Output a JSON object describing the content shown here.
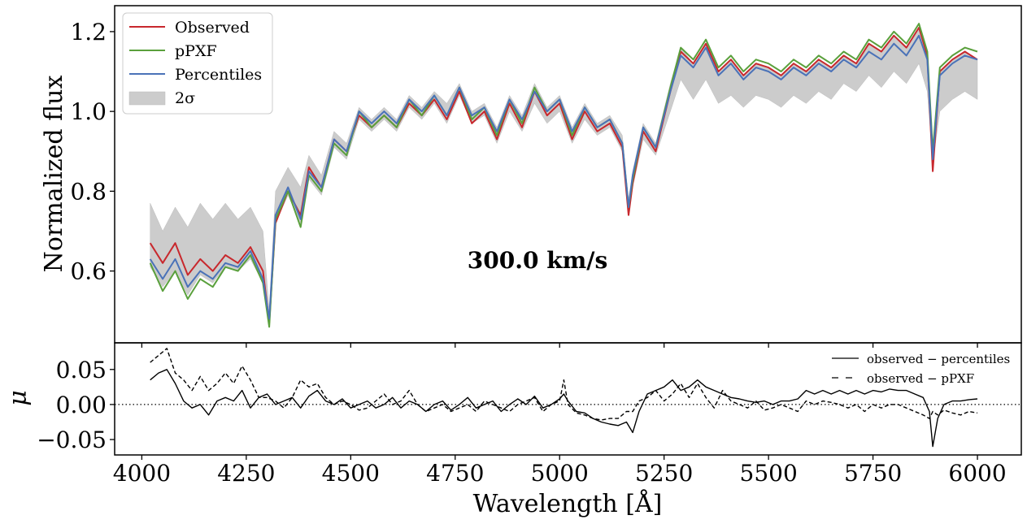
{
  "chart_data": [
    {
      "type": "line",
      "panel": "top",
      "ylabel": "Normalized flux",
      "annotation": "300.0 km/s",
      "xlim": [
        3935,
        6105
      ],
      "ylim": [
        0.42,
        1.265
      ],
      "x_ticks": [
        4000,
        4250,
        4500,
        4750,
        5000,
        5250,
        5500,
        5750,
        6000
      ],
      "y_ticks": [
        0.6,
        0.8,
        1.0,
        1.2
      ],
      "y_tick_labels": [
        "0.6",
        "0.8",
        "1.0",
        "1.2"
      ],
      "legend": {
        "position": "upper-left",
        "entries": [
          "Observed",
          "pPXF",
          "Percentiles",
          "2σ"
        ]
      },
      "x": [
        4020,
        4050,
        4080,
        4110,
        4140,
        4170,
        4200,
        4230,
        4260,
        4290,
        4305,
        4320,
        4350,
        4380,
        4400,
        4430,
        4460,
        4490,
        4520,
        4550,
        4580,
        4610,
        4640,
        4670,
        4700,
        4730,
        4760,
        4790,
        4820,
        4850,
        4880,
        4910,
        4940,
        4970,
        5000,
        5030,
        5060,
        5090,
        5120,
        5150,
        5165,
        5175,
        5200,
        5230,
        5265,
        5290,
        5320,
        5350,
        5380,
        5410,
        5440,
        5470,
        5500,
        5530,
        5560,
        5590,
        5620,
        5650,
        5680,
        5710,
        5740,
        5770,
        5800,
        5830,
        5860,
        5880,
        5893,
        5910,
        5940,
        5970,
        6000
      ],
      "series": [
        {
          "name": "Observed",
          "color": "#c8282d",
          "values": [
            0.67,
            0.62,
            0.67,
            0.59,
            0.63,
            0.6,
            0.64,
            0.62,
            0.66,
            0.6,
            0.47,
            0.72,
            0.8,
            0.74,
            0.86,
            0.81,
            0.93,
            0.9,
            0.99,
            0.96,
            0.99,
            0.96,
            1.02,
            0.99,
            1.03,
            0.98,
            1.05,
            0.97,
            1.0,
            0.93,
            1.02,
            0.96,
            1.05,
            0.99,
            1.02,
            0.93,
            1.0,
            0.95,
            0.97,
            0.91,
            0.74,
            0.82,
            0.95,
            0.9,
            1.05,
            1.15,
            1.12,
            1.17,
            1.1,
            1.13,
            1.09,
            1.12,
            1.11,
            1.09,
            1.12,
            1.1,
            1.13,
            1.11,
            1.14,
            1.12,
            1.17,
            1.15,
            1.19,
            1.16,
            1.21,
            1.14,
            0.85,
            1.1,
            1.13,
            1.15,
            1.13
          ]
        },
        {
          "name": "pPXF",
          "color": "#5aa03c",
          "values": [
            0.62,
            0.55,
            0.6,
            0.53,
            0.58,
            0.56,
            0.61,
            0.6,
            0.64,
            0.57,
            0.46,
            0.73,
            0.8,
            0.71,
            0.84,
            0.8,
            0.92,
            0.89,
            1.0,
            0.96,
            0.99,
            0.96,
            1.03,
            0.99,
            1.04,
            0.99,
            1.06,
            0.98,
            1.01,
            0.94,
            1.03,
            0.97,
            1.06,
            1.0,
            1.03,
            0.94,
            1.01,
            0.96,
            0.98,
            0.92,
            0.76,
            0.83,
            0.96,
            0.91,
            1.06,
            1.16,
            1.13,
            1.18,
            1.11,
            1.14,
            1.1,
            1.13,
            1.12,
            1.1,
            1.13,
            1.11,
            1.14,
            1.12,
            1.15,
            1.13,
            1.18,
            1.16,
            1.2,
            1.17,
            1.22,
            1.15,
            0.9,
            1.11,
            1.14,
            1.16,
            1.15
          ]
        },
        {
          "name": "Percentiles",
          "color": "#4a72b8",
          "values": [
            0.63,
            0.58,
            0.63,
            0.56,
            0.6,
            0.58,
            0.62,
            0.61,
            0.65,
            0.58,
            0.48,
            0.74,
            0.81,
            0.73,
            0.85,
            0.81,
            0.93,
            0.9,
            1.0,
            0.97,
            1.0,
            0.97,
            1.03,
            1.0,
            1.04,
            0.99,
            1.06,
            0.99,
            1.01,
            0.95,
            1.03,
            0.98,
            1.05,
            1.0,
            1.03,
            0.95,
            1.01,
            0.96,
            0.98,
            0.92,
            0.76,
            0.84,
            0.96,
            0.91,
            1.05,
            1.14,
            1.11,
            1.16,
            1.09,
            1.12,
            1.08,
            1.11,
            1.1,
            1.08,
            1.11,
            1.09,
            1.12,
            1.1,
            1.13,
            1.11,
            1.15,
            1.13,
            1.17,
            1.14,
            1.19,
            1.13,
            0.88,
            1.09,
            1.12,
            1.14,
            1.13
          ]
        }
      ],
      "band": {
        "name": "2σ",
        "color": "#cccccc",
        "lower": [
          0.61,
          0.56,
          0.6,
          0.54,
          0.59,
          0.57,
          0.61,
          0.6,
          0.63,
          0.57,
          0.47,
          0.72,
          0.79,
          0.72,
          0.83,
          0.79,
          0.91,
          0.88,
          0.98,
          0.95,
          0.98,
          0.95,
          1.01,
          0.98,
          1.02,
          0.97,
          1.04,
          0.97,
          0.99,
          0.92,
          1.0,
          0.95,
          1.02,
          0.97,
          1.0,
          0.92,
          0.98,
          0.94,
          0.96,
          0.9,
          0.74,
          0.81,
          0.93,
          0.89,
          1.0,
          1.08,
          1.03,
          1.08,
          1.02,
          1.04,
          1.01,
          1.04,
          1.03,
          1.01,
          1.04,
          1.02,
          1.05,
          1.03,
          1.07,
          1.05,
          1.09,
          1.06,
          1.1,
          1.07,
          1.12,
          1.05,
          0.87,
          1.0,
          1.03,
          1.05,
          1.03
        ],
        "upper": [
          0.77,
          0.7,
          0.76,
          0.71,
          0.77,
          0.73,
          0.77,
          0.73,
          0.76,
          0.7,
          0.5,
          0.8,
          0.86,
          0.81,
          0.89,
          0.84,
          0.95,
          0.92,
          1.01,
          0.98,
          1.01,
          0.98,
          1.04,
          1.01,
          1.05,
          1.02,
          1.07,
          1.0,
          1.02,
          0.96,
          1.04,
          0.99,
          1.07,
          1.01,
          1.04,
          0.96,
          1.02,
          0.97,
          0.99,
          0.94,
          0.78,
          0.85,
          0.97,
          0.92,
          1.07,
          1.16,
          1.12,
          1.17,
          1.1,
          1.13,
          1.09,
          1.12,
          1.11,
          1.09,
          1.12,
          1.1,
          1.13,
          1.11,
          1.14,
          1.12,
          1.17,
          1.15,
          1.19,
          1.16,
          1.21,
          1.14,
          0.89,
          1.1,
          1.13,
          1.15,
          1.13
        ]
      }
    },
    {
      "type": "line",
      "panel": "bottom",
      "ylabel": "μ",
      "xlabel": "Wavelength [Å]",
      "xlim": [
        3935,
        6105
      ],
      "ylim": [
        -0.072,
        0.088
      ],
      "x_ticks": [
        4000,
        4250,
        4500,
        4750,
        5000,
        5250,
        5500,
        5750,
        6000
      ],
      "x_tick_labels": [
        "4000",
        "4250",
        "4500",
        "4750",
        "5000",
        "5250",
        "5500",
        "5750",
        "6000"
      ],
      "y_ticks": [
        -0.05,
        0.0,
        0.05
      ],
      "y_tick_labels": [
        "−0.05",
        "0.00",
        "0.05"
      ],
      "reference_line": 0.0,
      "legend": {
        "position": "upper-right",
        "entries": [
          "observed − percentiles",
          "observed − pPXF"
        ]
      },
      "x": [
        4020,
        4040,
        4060,
        4080,
        4100,
        4120,
        4140,
        4160,
        4180,
        4200,
        4220,
        4240,
        4260,
        4280,
        4300,
        4320,
        4340,
        4360,
        4380,
        4400,
        4420,
        4440,
        4460,
        4480,
        4500,
        4520,
        4540,
        4560,
        4580,
        4600,
        4620,
        4640,
        4660,
        4680,
        4700,
        4720,
        4740,
        4760,
        4780,
        4800,
        4820,
        4840,
        4860,
        4880,
        4900,
        4920,
        4940,
        4960,
        4980,
        5000,
        5010,
        5020,
        5040,
        5060,
        5080,
        5100,
        5120,
        5140,
        5160,
        5175,
        5190,
        5210,
        5230,
        5250,
        5270,
        5290,
        5310,
        5330,
        5350,
        5370,
        5390,
        5410,
        5430,
        5450,
        5470,
        5490,
        5510,
        5530,
        5550,
        5570,
        5590,
        5610,
        5630,
        5650,
        5670,
        5690,
        5710,
        5730,
        5750,
        5770,
        5790,
        5810,
        5830,
        5850,
        5870,
        5885,
        5893,
        5905,
        5920,
        5940,
        5960,
        5980,
        6000
      ],
      "series": [
        {
          "name": "observed − percentiles",
          "style": "solid",
          "values": [
            0.035,
            0.045,
            0.05,
            0.03,
            0.005,
            -0.005,
            0.0,
            -0.015,
            0.005,
            0.01,
            0.005,
            0.02,
            -0.005,
            0.01,
            0.015,
            0.0,
            0.005,
            0.01,
            -0.005,
            0.012,
            0.02,
            0.005,
            0.0,
            0.008,
            -0.005,
            0.0,
            0.005,
            -0.005,
            0.0,
            0.01,
            -0.005,
            0.005,
            0.0,
            -0.01,
            0.0,
            0.005,
            -0.008,
            0.0,
            0.01,
            -0.005,
            0.0,
            0.005,
            -0.01,
            0.0,
            0.008,
            0.0,
            0.012,
            -0.005,
            0.0,
            0.008,
            0.015,
            0.005,
            -0.01,
            -0.012,
            -0.02,
            -0.025,
            -0.028,
            -0.03,
            -0.025,
            -0.04,
            -0.01,
            0.015,
            0.02,
            0.025,
            0.035,
            0.02,
            0.025,
            0.035,
            0.025,
            0.02,
            0.015,
            0.01,
            0.008,
            0.005,
            0.003,
            0.005,
            0.0,
            0.005,
            0.005,
            0.008,
            0.02,
            0.015,
            0.02,
            0.015,
            0.02,
            0.015,
            0.02,
            0.015,
            0.02,
            0.018,
            0.022,
            0.02,
            0.02,
            0.015,
            0.01,
            -0.01,
            -0.06,
            -0.02,
            0.0,
            0.005,
            0.005,
            0.007,
            0.008
          ]
        },
        {
          "name": "observed − pPXF",
          "style": "dashed",
          "values": [
            0.06,
            0.07,
            0.08,
            0.045,
            0.035,
            0.02,
            0.04,
            0.02,
            0.03,
            0.045,
            0.03,
            0.055,
            0.035,
            0.01,
            0.01,
            0.005,
            -0.005,
            0.01,
            0.035,
            0.025,
            0.03,
            0.01,
            0.0,
            0.005,
            0.0,
            -0.008,
            -0.005,
            0.005,
            0.015,
            0.0,
            0.005,
            0.02,
            0.0,
            -0.01,
            -0.005,
            0.0,
            -0.01,
            -0.005,
            0.0,
            -0.01,
            0.005,
            0.0,
            -0.005,
            -0.01,
            0.0,
            0.005,
            0.01,
            -0.01,
            0.0,
            0.005,
            0.035,
            0.0,
            -0.012,
            -0.015,
            -0.02,
            -0.022,
            -0.02,
            -0.02,
            -0.01,
            -0.01,
            0.005,
            0.01,
            0.02,
            0.005,
            0.015,
            0.03,
            0.01,
            0.03,
            0.01,
            -0.005,
            0.02,
            0.005,
            0.0,
            -0.005,
            0.005,
            -0.008,
            -0.005,
            0.0,
            -0.005,
            -0.01,
            0.005,
            0.0,
            0.005,
            0.003,
            0.0,
            -0.005,
            0.0,
            -0.01,
            0.0,
            -0.005,
            0.0,
            0.0,
            -0.005,
            -0.01,
            -0.015,
            -0.02,
            -0.01,
            -0.015,
            -0.008,
            -0.012,
            -0.015,
            -0.01,
            -0.012
          ]
        }
      ]
    }
  ]
}
